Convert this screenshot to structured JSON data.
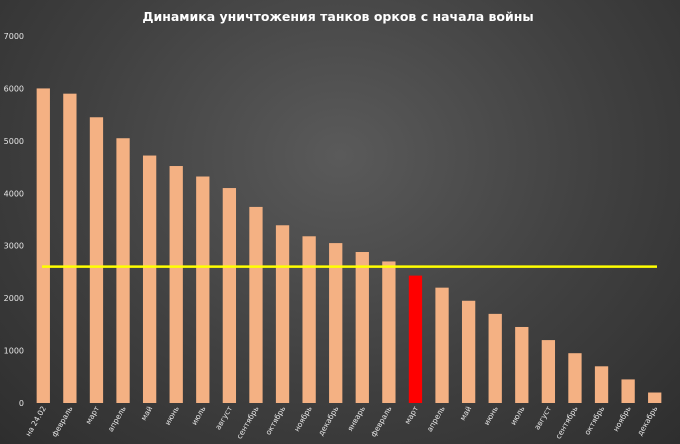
{
  "chart_data": {
    "type": "bar",
    "title": "Динамика уничтожения танков орков с начала войны",
    "xlabel": "",
    "ylabel": "",
    "ylim": [
      0,
      7000
    ],
    "yticks": [
      0,
      1000,
      2000,
      3000,
      4000,
      5000,
      6000,
      7000
    ],
    "grid": false,
    "categories": [
      "на 24.02",
      "февраль",
      "март",
      "апрель",
      "май",
      "июнь",
      "июль",
      "август",
      "сентябрь",
      "октябрь",
      "ноябрь",
      "декабрь",
      "январь",
      "февраль",
      "март",
      "апрель",
      "май",
      "июнь",
      "июль",
      "август",
      "сентябрь",
      "октябрь",
      "ноябрь",
      "декабрь"
    ],
    "values": [
      6000,
      5900,
      5450,
      5050,
      4720,
      4520,
      4320,
      4100,
      3740,
      3390,
      3180,
      3050,
      2880,
      2700,
      2430,
      2200,
      1950,
      1700,
      1450,
      1200,
      950,
      700,
      450,
      200
    ],
    "highlight_index": 14,
    "reference_line": {
      "y": 2600,
      "color": "#ffff00"
    },
    "colors": {
      "bar": "#f4b183",
      "highlight": "#ff0000",
      "reference": "#ffff00"
    }
  }
}
